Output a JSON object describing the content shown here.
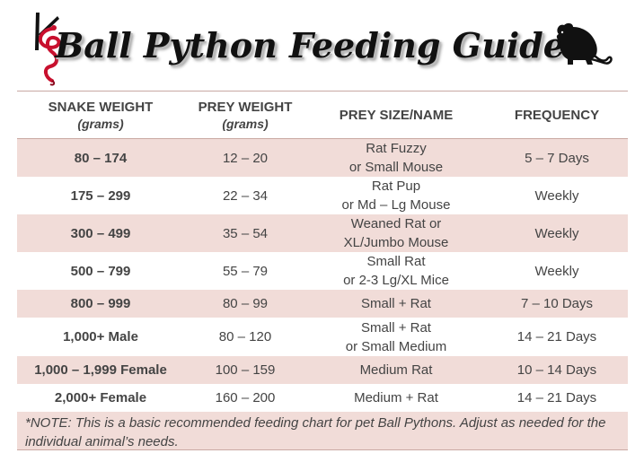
{
  "header": {
    "title": "Ball Python Feeding Guide",
    "logo_icon": "snake-logo-icon",
    "rat_icon": "rat-silhouette-icon"
  },
  "table": {
    "columns": [
      {
        "label": "SNAKE WEIGHT",
        "sub": "(grams)"
      },
      {
        "label": "PREY WEIGHT",
        "sub": "(grams)"
      },
      {
        "label": "PREY SIZE/NAME",
        "sub": ""
      },
      {
        "label": "FREQUENCY",
        "sub": ""
      }
    ],
    "rows": [
      {
        "snake": "80 – 174",
        "prey_weight": "12 – 20",
        "prey_line1": "Rat Fuzzy",
        "prey_line2": "or Small Mouse",
        "frequency": "5 – 7 Days"
      },
      {
        "snake": "175 – 299",
        "prey_weight": "22 – 34",
        "prey_line1": "Rat Pup",
        "prey_line2": "or Md – Lg Mouse",
        "frequency": "Weekly"
      },
      {
        "snake": "300 – 499",
        "prey_weight": "35 – 54",
        "prey_line1": "Weaned Rat or",
        "prey_line2": "XL/Jumbo Mouse",
        "frequency": "Weekly"
      },
      {
        "snake": "500 – 799",
        "prey_weight": "55 – 79",
        "prey_line1": "Small Rat",
        "prey_line2": "or 2-3 Lg/XL Mice",
        "frequency": "Weekly"
      },
      {
        "snake": "800 – 999",
        "prey_weight": "80 – 99",
        "prey_line1": "Small + Rat",
        "prey_line2": "",
        "frequency": "7 – 10 Days"
      },
      {
        "snake": "1,000+ Male",
        "prey_weight": "80 – 120",
        "prey_line1": "Small + Rat",
        "prey_line2": "or Small Medium",
        "frequency": "14 – 21 Days"
      },
      {
        "snake": "1,000 – 1,999 Female",
        "prey_weight": "100 – 159",
        "prey_line1": "Medium Rat",
        "prey_line2": "",
        "frequency": "10 – 14 Days"
      },
      {
        "snake": "2,000+ Female",
        "prey_weight": "160 – 200",
        "prey_line1": "Medium + Rat",
        "prey_line2": "",
        "frequency": "14 – 21 Days"
      }
    ]
  },
  "note": "*NOTE: This is a basic recommended feeding chart for pet Ball Pythons. Adjust as needed for the individual animal’s needs.",
  "colors": {
    "row_shade": "#f1dcd8",
    "rule": "#c9a9a3",
    "snake_red": "#c8102e"
  }
}
